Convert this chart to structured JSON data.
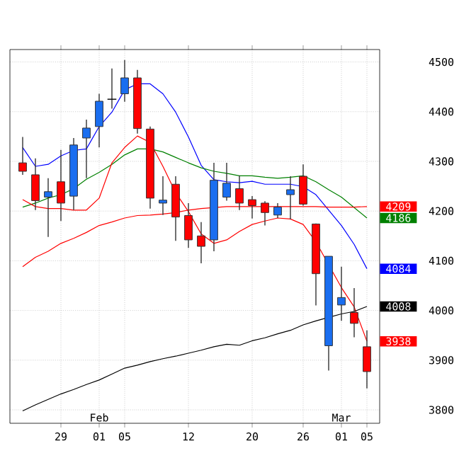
{
  "chart_data": {
    "type": "candlestick",
    "categories": [
      null,
      null,
      null,
      "29",
      null,
      null,
      "01",
      null,
      "05",
      null,
      null,
      null,
      null,
      "12",
      null,
      null,
      null,
      null,
      "20",
      null,
      null,
      null,
      "26",
      null,
      null,
      "01",
      null,
      "05"
    ],
    "ohlc": [
      [
        4297,
        4349,
        4273,
        4280
      ],
      [
        4273,
        4306,
        4202,
        4221
      ],
      [
        4228,
        4266,
        4148,
        4239
      ],
      [
        4259,
        4323,
        4180,
        4216
      ],
      [
        4230,
        4347,
        4202,
        4333
      ],
      [
        4347,
        4384,
        4266,
        4367
      ],
      [
        4370,
        4436,
        4328,
        4421
      ],
      [
        4425,
        4487,
        4406,
        4425
      ],
      [
        4436,
        4504,
        4420,
        4468
      ],
      [
        4468,
        4484,
        4356,
        4366
      ],
      [
        4365,
        4370,
        4205,
        4226
      ],
      [
        4216,
        4270,
        4192,
        4222
      ],
      [
        4254,
        4270,
        4140,
        4188
      ],
      [
        4191,
        4216,
        4126,
        4142
      ],
      [
        4150,
        4178,
        4095,
        4129
      ],
      [
        4142,
        4297,
        4119,
        4262
      ],
      [
        4228,
        4297,
        4221,
        4256
      ],
      [
        4245,
        4271,
        4202,
        4216
      ],
      [
        4223,
        4230,
        4185,
        4211
      ],
      [
        4216,
        4220,
        4171,
        4197
      ],
      [
        4192,
        4216,
        4186,
        4208
      ],
      [
        4233,
        4270,
        4183,
        4243
      ],
      [
        4270,
        4294,
        4211,
        4214
      ],
      [
        4174,
        4175,
        4010,
        4074
      ],
      [
        3929,
        4109,
        3879,
        4109
      ],
      [
        4011,
        4088,
        3979,
        4026
      ],
      [
        3996,
        4045,
        3946,
        3974
      ],
      [
        3927,
        3960,
        3843,
        3877
      ]
    ],
    "colors": [
      "#ff0000",
      "#ff0000",
      "#1a6ef0",
      "#ff0000",
      "#1a6ef0",
      "#1a6ef0",
      "#1a6ef0",
      "#000000",
      "#1a6ef0",
      "#ff0000",
      "#ff0000",
      "#1a6ef0",
      "#ff0000",
      "#ff0000",
      "#ff0000",
      "#1a6ef0",
      "#1a6ef0",
      "#ff0000",
      "#ff0000",
      "#ff0000",
      "#1a6ef0",
      "#1a6ef0",
      "#ff0000",
      "#ff0000",
      "#1a6ef0",
      "#1a6ef0",
      "#ff0000",
      "#ff0000"
    ],
    "series": [
      {
        "type": "line",
        "color": "#0000ff",
        "values": [
          4328,
          4290,
          4294,
          4311,
          4322,
          4325,
          4370,
          4399,
          4444,
          4456,
          4456,
          4436,
          4399,
          4349,
          4292,
          4263,
          4259,
          4257,
          4260,
          4254,
          4254,
          4254,
          4249,
          4233,
          4202,
          4171,
          4133,
          4084
        ],
        "value_labels": [
          null,
          null,
          null,
          null,
          null,
          null,
          null,
          null,
          null,
          null,
          null,
          null,
          null,
          null,
          null,
          null,
          null,
          null,
          null,
          null,
          null,
          null,
          null,
          null,
          null,
          null,
          null,
          "4084"
        ]
      },
      {
        "type": "line",
        "color": "#008000",
        "values": [
          4208,
          4216,
          4226,
          4233,
          4245,
          4264,
          4278,
          4294,
          4313,
          4325,
          4325,
          4319,
          4308,
          4297,
          4287,
          4280,
          4276,
          4271,
          4271,
          4268,
          4266,
          4268,
          4271,
          4259,
          4243,
          4228,
          4207,
          4186
        ],
        "value_labels": [
          null,
          null,
          null,
          null,
          null,
          null,
          null,
          null,
          null,
          null,
          null,
          null,
          null,
          null,
          null,
          null,
          null,
          null,
          null,
          null,
          null,
          null,
          null,
          null,
          null,
          null,
          null,
          "4186"
        ]
      },
      {
        "type": "line",
        "color": "#ff0000",
        "values": [
          4223,
          4209,
          4205,
          4205,
          4202,
          4202,
          4226,
          4297,
          4328,
          4351,
          4338,
          4290,
          4237,
          4199,
          4154,
          4135,
          4142,
          4159,
          4173,
          4180,
          4186,
          4184,
          4173,
          4138,
          null,
          4046,
          4007,
          3938
        ],
        "value_labels": [
          null,
          null,
          null,
          null,
          null,
          null,
          null,
          null,
          null,
          null,
          null,
          null,
          null,
          null,
          null,
          null,
          null,
          null,
          null,
          null,
          null,
          null,
          null,
          null,
          null,
          null,
          null,
          "3938"
        ]
      },
      {
        "type": "line",
        "color": "#ff0000",
        "values": [
          4088,
          4107,
          4119,
          4135,
          4145,
          4157,
          4171,
          4178,
          4186,
          4191,
          4192,
          4194,
          4197,
          4202,
          4205,
          4207,
          4209,
          4209,
          4209,
          4209,
          4209,
          4209,
          4209,
          4209,
          4208,
          4208,
          4208,
          4209
        ],
        "value_labels": [
          null,
          null,
          null,
          null,
          null,
          null,
          null,
          null,
          null,
          null,
          null,
          null,
          null,
          null,
          null,
          null,
          null,
          null,
          null,
          null,
          null,
          null,
          null,
          null,
          null,
          null,
          null,
          "4209"
        ]
      },
      {
        "type": "line",
        "color": "#000000",
        "values": [
          3798,
          3810,
          3821,
          3832,
          3841,
          3851,
          3860,
          3872,
          3884,
          3890,
          3897,
          3903,
          3908,
          3914,
          3920,
          3927,
          3932,
          3930,
          3939,
          3945,
          3953,
          3960,
          3971,
          3979,
          3986,
          3993,
          3998,
          4008
        ],
        "value_labels": [
          null,
          null,
          null,
          null,
          null,
          null,
          null,
          null,
          null,
          null,
          null,
          null,
          null,
          null,
          null,
          null,
          null,
          null,
          null,
          null,
          null,
          null,
          null,
          null,
          null,
          null,
          null,
          "4008"
        ]
      }
    ],
    "ylim": [
      3773,
      4525
    ],
    "yticks": [
      3800,
      3900,
      4000,
      4100,
      4200,
      4300,
      4400,
      4500
    ],
    "grid": true,
    "annotations": [
      "Feb",
      "Mar"
    ]
  }
}
